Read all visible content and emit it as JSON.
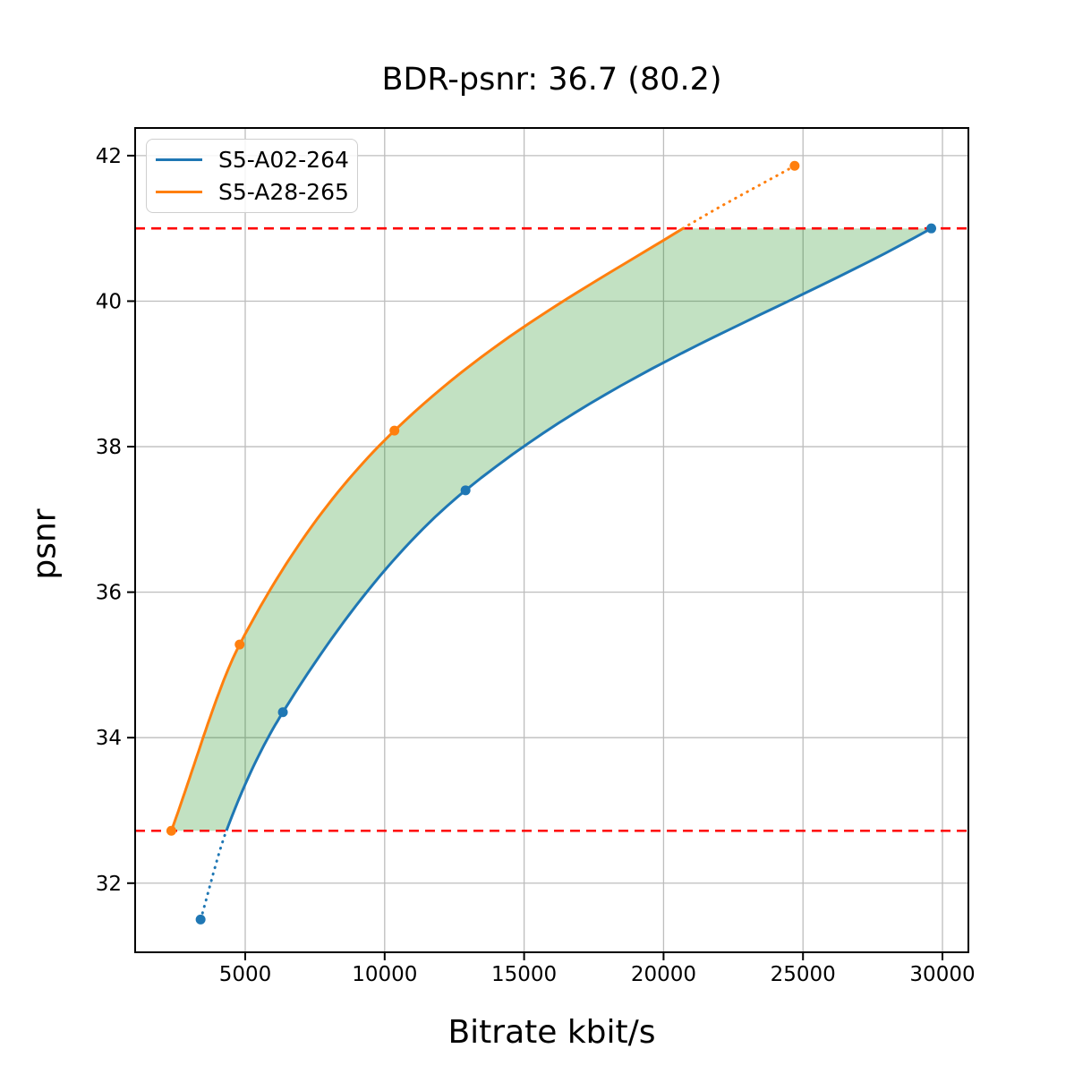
{
  "chart_data": {
    "type": "line",
    "title": "BDR-psnr: 36.7 (80.2)",
    "xlabel": "Bitrate kbit/s",
    "ylabel": "psnr",
    "xlim": [
      1053,
      30930
    ],
    "ylim": [
      31.05,
      42.38
    ],
    "xticks": [
      5000,
      10000,
      15000,
      20000,
      25000,
      30000
    ],
    "yticks": [
      32,
      34,
      36,
      38,
      40,
      42
    ],
    "grid": true,
    "grid_color": "#bdbdbd",
    "legend": {
      "position": "upper-left",
      "entries": [
        "S5-A02-264",
        "S5-A28-265"
      ]
    },
    "series": [
      {
        "name": "S5-A02-264",
        "color": "#1f77b4",
        "markers": [
          [
            3400,
            31.5
          ],
          [
            6350,
            34.35
          ],
          [
            12900,
            37.4
          ],
          [
            29600,
            41.0
          ]
        ],
        "curve_anchors": [
          [
            3400,
            31.5
          ],
          [
            4325,
            32.72
          ],
          [
            6350,
            34.35
          ],
          [
            12900,
            37.4
          ],
          [
            29600,
            41.0
          ]
        ],
        "solid_anchor_range": [
          1,
          4
        ],
        "dotted_anchor_ranges": [
          [
            0,
            1
          ]
        ]
      },
      {
        "name": "S5-A28-265",
        "color": "#ff7f0e",
        "markers": [
          [
            2350,
            32.72
          ],
          [
            4800,
            35.28
          ],
          [
            10350,
            38.22
          ],
          [
            24700,
            41.86
          ]
        ],
        "curve_anchors": [
          [
            2350,
            32.72
          ],
          [
            4800,
            35.28
          ],
          [
            10350,
            38.22
          ],
          [
            20700,
            41.0
          ],
          [
            24700,
            41.86
          ]
        ],
        "solid_anchor_range": [
          0,
          3
        ],
        "dotted_anchor_ranges": [
          [
            3,
            4
          ]
        ]
      }
    ],
    "hlines": {
      "values": [
        32.72,
        41.0
      ],
      "color": "#ff0000",
      "style": "dashed"
    },
    "fill_between": {
      "upper_series": "S5-A28-265",
      "lower_series": "S5-A02-264",
      "y_range": [
        32.72,
        41.0
      ],
      "color": "#008000",
      "alpha": 0.24
    }
  }
}
